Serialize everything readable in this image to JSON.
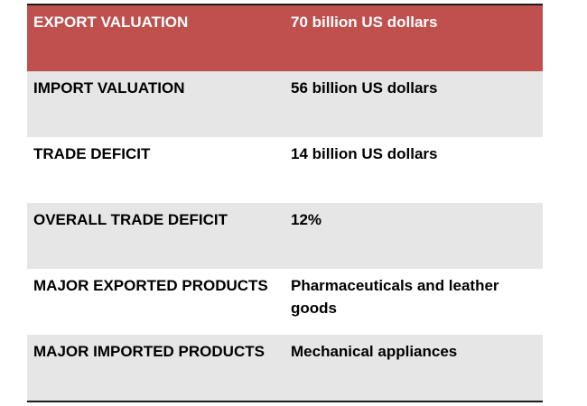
{
  "table": {
    "header": {
      "label": "EXPORT VALUATION",
      "value": "70 billion US dollars"
    },
    "rows": [
      {
        "label": "IMPORT VALUATION",
        "value": "56 billion US dollars"
      },
      {
        "label": "TRADE DEFICIT",
        "value": "14 billion US dollars"
      },
      {
        "label": "OVERALL TRADE DEFICIT",
        "value": "12%"
      },
      {
        "label": "MAJOR EXPORTED PRODUCTS",
        "value": "Pharmaceuticals and leather goods"
      },
      {
        "label": "MAJOR IMPORTED PRODUCTS",
        "value": "Mechanical appliances"
      }
    ]
  },
  "colors": {
    "header_background": "#c0504d",
    "shaded_row_background": "#e6e6e6",
    "plain_row_background": "#ffffff",
    "border": "#1a1a1a"
  }
}
